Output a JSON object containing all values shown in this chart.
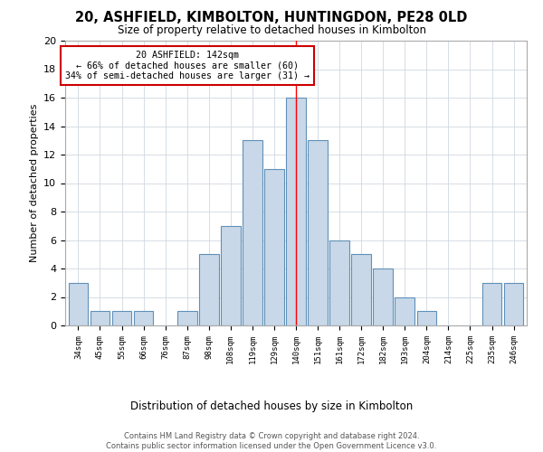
{
  "title": "20, ASHFIELD, KIMBOLTON, HUNTINGDON, PE28 0LD",
  "subtitle": "Size of property relative to detached houses in Kimbolton",
  "xlabel": "Distribution of detached houses by size in Kimbolton",
  "ylabel": "Number of detached properties",
  "bar_labels": [
    "34sqm",
    "45sqm",
    "55sqm",
    "66sqm",
    "76sqm",
    "87sqm",
    "98sqm",
    "108sqm",
    "119sqm",
    "129sqm",
    "140sqm",
    "151sqm",
    "161sqm",
    "172sqm",
    "182sqm",
    "193sqm",
    "204sqm",
    "214sqm",
    "225sqm",
    "235sqm",
    "246sqm"
  ],
  "bar_values": [
    3,
    1,
    1,
    1,
    0,
    1,
    5,
    7,
    13,
    11,
    16,
    13,
    6,
    5,
    4,
    2,
    1,
    0,
    0,
    3,
    3
  ],
  "bar_color": "#c8d8e8",
  "bar_edge_color": "#6090b8",
  "highlight_color": "#ff0000",
  "annotation_title": "20 ASHFIELD: 142sqm",
  "annotation_line1": "← 66% of detached houses are smaller (60)",
  "annotation_line2": "34% of semi-detached houses are larger (31) →",
  "annotation_box_color": "#ffffff",
  "annotation_box_edge_color": "#cc0000",
  "vline_x_index": 10,
  "ylim": [
    0,
    20
  ],
  "yticks": [
    0,
    2,
    4,
    6,
    8,
    10,
    12,
    14,
    16,
    18,
    20
  ],
  "background_color": "#ffffff",
  "grid_color": "#d0d8e0",
  "footer_line1": "Contains HM Land Registry data © Crown copyright and database right 2024.",
  "footer_line2": "Contains public sector information licensed under the Open Government Licence v3.0."
}
